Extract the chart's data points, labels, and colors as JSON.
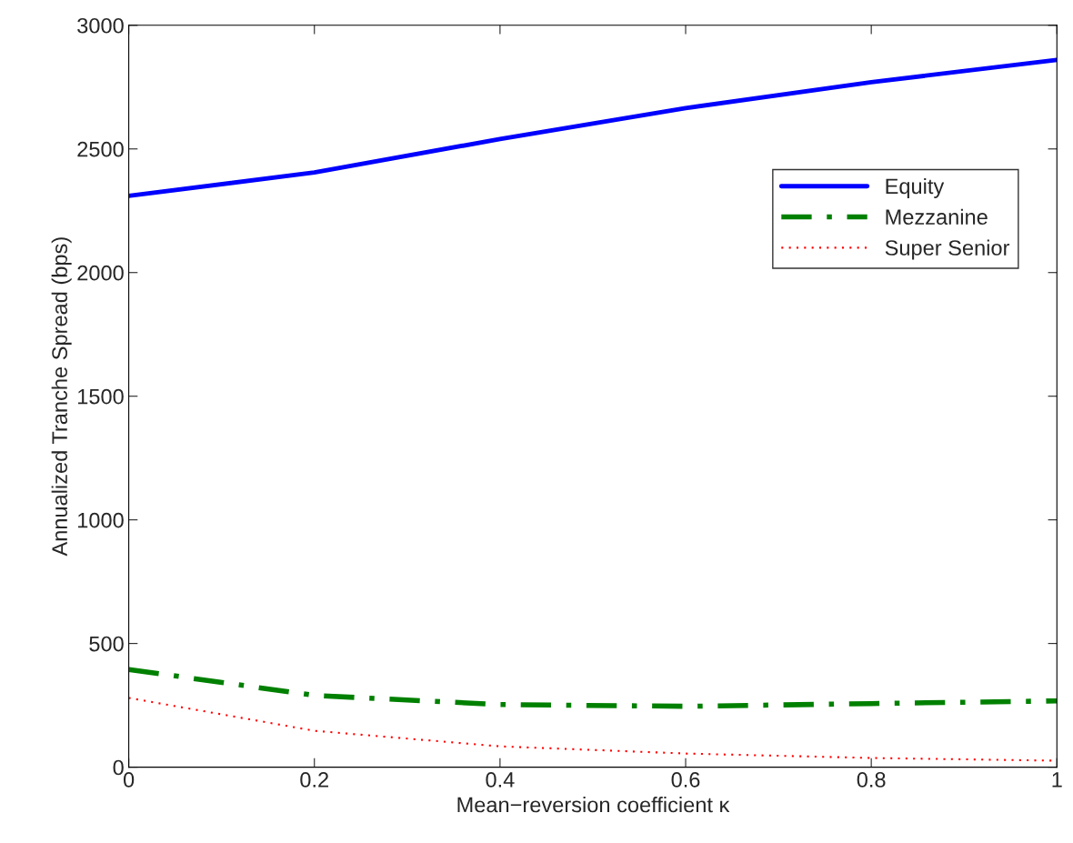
{
  "chart_data": {
    "type": "line",
    "xlabel": "Mean−reversion coefficient κ",
    "ylabel": "Annualized Tranche Spread (bps)",
    "x": [
      0,
      0.2,
      0.4,
      0.6,
      0.8,
      1
    ],
    "series": [
      {
        "name": "Equity",
        "color": "#0000ff",
        "line_style": "solid",
        "values": [
          2310,
          2405,
          2540,
          2665,
          2770,
          2860
        ]
      },
      {
        "name": "Mezzanine",
        "color": "#008000",
        "line_style": "dashdot",
        "values": [
          395,
          290,
          253,
          246,
          257,
          268
        ]
      },
      {
        "name": "Super Senior",
        "color": "#ff0000",
        "line_style": "dotted",
        "values": [
          280,
          147,
          84,
          55,
          37,
          26
        ]
      }
    ],
    "xlim": [
      0,
      1
    ],
    "xticks": [
      0,
      0.2,
      0.4,
      0.6,
      0.8,
      1
    ],
    "ylim": [
      0,
      3000
    ],
    "yticks": [
      0,
      500,
      1000,
      1500,
      2000,
      2500,
      3000
    ],
    "grid": false,
    "legend": "top right"
  }
}
